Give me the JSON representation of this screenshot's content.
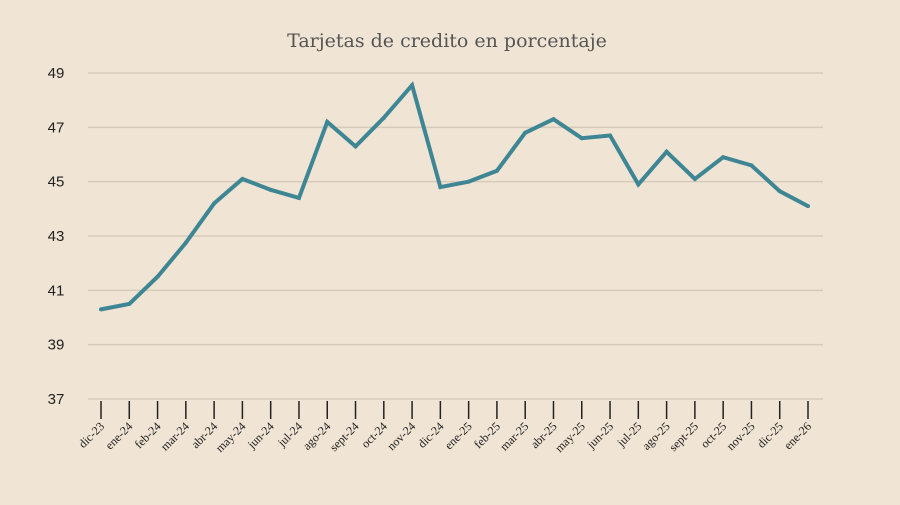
{
  "chart_data": {
    "type": "line",
    "title": "Tarjetas de credito en porcentaje",
    "xlabel": "",
    "ylabel": "",
    "ylim": [
      37,
      49
    ],
    "yticks": [
      37,
      39,
      41,
      43,
      45,
      47,
      49
    ],
    "grid": true,
    "line_color": "#3f8695",
    "background": "#f0e4d4",
    "categories": [
      "dic-23",
      "ene-24",
      "feb-24",
      "mar-24",
      "abr-24",
      "may-24",
      "jun-24",
      "jul-24",
      "ago-24",
      "sept-24",
      "oct-24",
      "nov-24",
      "dic-24",
      "ene-25",
      "feb-25",
      "mar-25",
      "abr-25",
      "may-25",
      "jun-25",
      "jul-25",
      "ago-25",
      "sept-25",
      "oct-25",
      "nov-25",
      "dic-25",
      "ene-26"
    ],
    "values": [
      40.3,
      40.5,
      41.5,
      42.75,
      44.2,
      45.1,
      44.7,
      44.4,
      47.2,
      46.3,
      47.35,
      48.55,
      44.8,
      45.0,
      45.4,
      46.8,
      47.3,
      46.6,
      46.7,
      44.9,
      46.1,
      45.1,
      45.9,
      45.6,
      44.65,
      44.1
    ]
  }
}
